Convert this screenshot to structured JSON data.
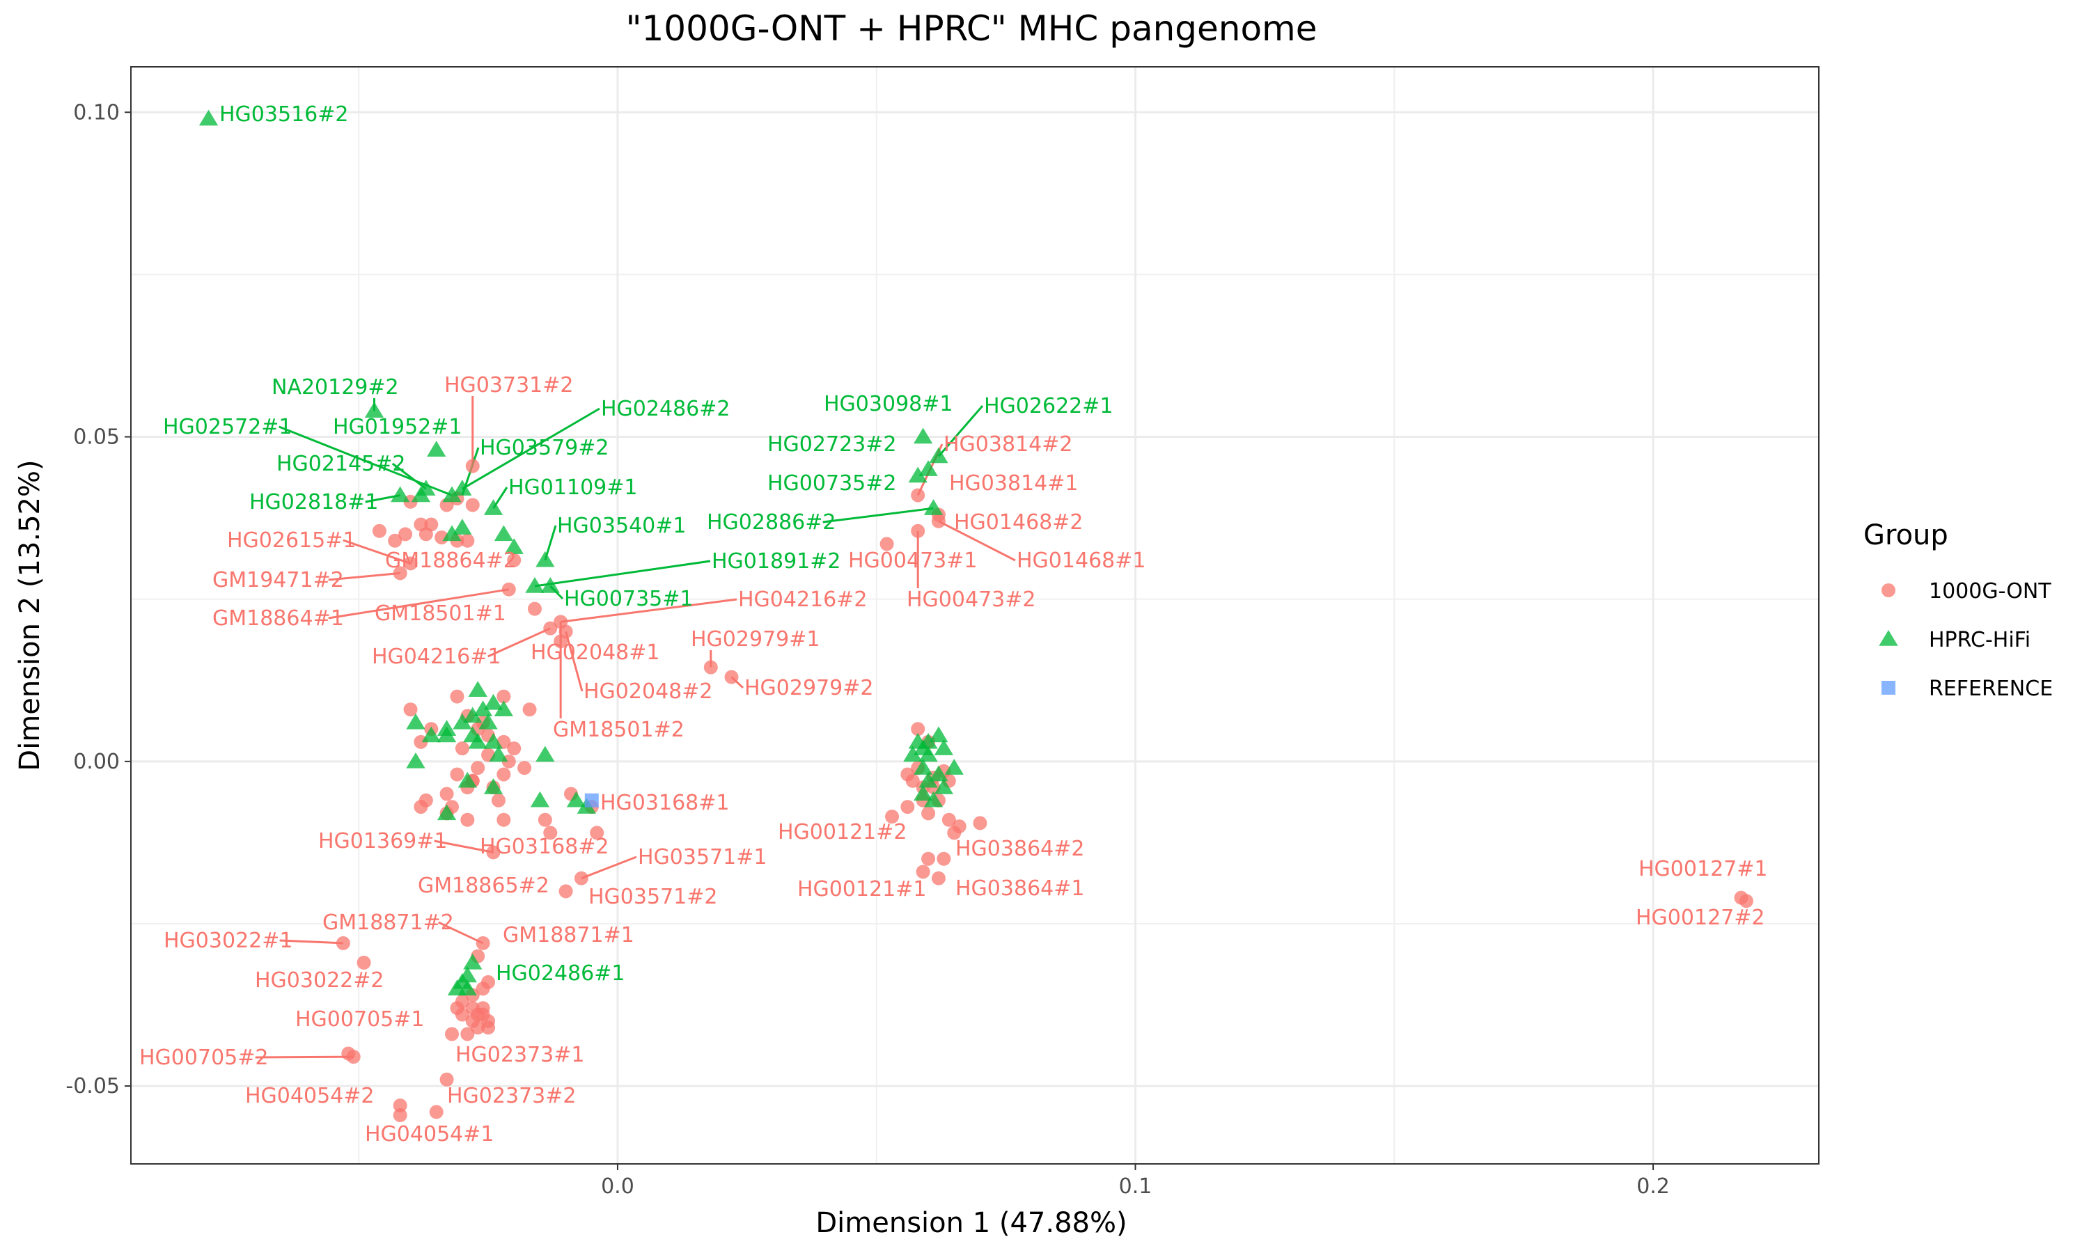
{
  "chart_data": {
    "type": "scatter",
    "title": "\"1000G-ONT + HPRC\" MHC pangenome",
    "xlabel": "Dimension 1 (47.88%)",
    "ylabel": "Dimension 2 (13.52%)",
    "xlim": [
      -0.094,
      0.232
    ],
    "ylim": [
      -0.062,
      0.107
    ],
    "x_ticks": [
      0.0,
      0.1,
      0.2
    ],
    "x_tick_labels": [
      "0.0",
      "0.1",
      "0.2"
    ],
    "y_ticks": [
      -0.05,
      0.0,
      0.05,
      0.1
    ],
    "y_tick_labels": [
      "-0.05",
      "0.00",
      "0.05",
      "0.10"
    ],
    "grid": true,
    "legend": {
      "title": "Group",
      "position": "right",
      "entries": [
        {
          "name": "1000G-ONT",
          "shape": "circle",
          "color": "#F8766D"
        },
        {
          "name": "HPRC-HiFi",
          "shape": "triangle",
          "color": "#00BA38"
        },
        {
          "name": "REFERENCE",
          "shape": "square",
          "color": "#619CFF"
        }
      ]
    },
    "series": [
      {
        "name": "1000G-ONT",
        "color": "#F8766D",
        "shape": "circle",
        "points": [
          [
            -0.028,
            0.0455
          ],
          [
            -0.031,
            0.0405
          ],
          [
            -0.033,
            0.0395
          ],
          [
            -0.028,
            0.0395
          ],
          [
            -0.036,
            0.0365
          ],
          [
            -0.038,
            0.0365
          ],
          [
            -0.037,
            0.035
          ],
          [
            -0.041,
            0.035
          ],
          [
            -0.034,
            0.0345
          ],
          [
            -0.031,
            0.034
          ],
          [
            -0.029,
            0.034
          ],
          [
            -0.04,
            0.04
          ],
          [
            -0.043,
            0.034
          ],
          [
            -0.046,
            0.0355
          ],
          [
            -0.04,
            0.0305
          ],
          [
            -0.042,
            0.029
          ],
          [
            -0.02,
            0.031
          ],
          [
            -0.021,
            0.0265
          ],
          [
            -0.016,
            0.0235
          ],
          [
            -0.013,
            0.0205
          ],
          [
            -0.011,
            0.0215
          ],
          [
            -0.01,
            0.02
          ],
          [
            -0.011,
            0.0185
          ],
          [
            0.018,
            0.0145
          ],
          [
            0.022,
            0.013
          ],
          [
            0.052,
            0.0335
          ],
          [
            0.058,
            0.0355
          ],
          [
            0.058,
            0.041
          ],
          [
            0.062,
            0.038
          ],
          [
            0.062,
            0.037
          ],
          [
            -0.04,
            0.008
          ],
          [
            -0.031,
            0.01
          ],
          [
            -0.036,
            0.005
          ],
          [
            -0.038,
            0.003
          ],
          [
            -0.029,
            0.007
          ],
          [
            -0.027,
            0.005
          ],
          [
            -0.022,
            0.01
          ],
          [
            -0.017,
            0.008
          ],
          [
            -0.025,
            0.004
          ],
          [
            -0.022,
            0.003
          ],
          [
            -0.02,
            0.002
          ],
          [
            -0.03,
            0.002
          ],
          [
            -0.027,
            -0.001
          ],
          [
            -0.022,
            -0.002
          ],
          [
            -0.024,
            -0.004
          ],
          [
            -0.018,
            -0.001
          ],
          [
            -0.028,
            -0.003
          ],
          [
            -0.031,
            -0.002
          ],
          [
            -0.033,
            -0.005
          ],
          [
            -0.037,
            -0.006
          ],
          [
            -0.038,
            -0.007
          ],
          [
            -0.032,
            -0.007
          ],
          [
            -0.029,
            -0.009
          ],
          [
            -0.022,
            -0.009
          ],
          [
            -0.029,
            -0.004
          ],
          [
            -0.025,
            0.001
          ],
          [
            -0.021,
            0.0
          ],
          [
            -0.023,
            -0.006
          ],
          [
            -0.033,
            -0.008
          ],
          [
            -0.014,
            -0.009
          ],
          [
            -0.013,
            -0.011
          ],
          [
            -0.009,
            -0.005
          ],
          [
            -0.005,
            -0.007
          ],
          [
            -0.004,
            -0.011
          ],
          [
            -0.024,
            -0.014
          ],
          [
            -0.028,
            -0.003
          ],
          [
            -0.026,
            0.006
          ],
          [
            -0.007,
            -0.018
          ],
          [
            -0.01,
            -0.02
          ],
          [
            0.058,
            0.005
          ],
          [
            0.06,
            0.003
          ],
          [
            0.056,
            -0.002
          ],
          [
            0.057,
            -0.003
          ],
          [
            0.059,
            -0.004
          ],
          [
            0.061,
            -0.004
          ],
          [
            0.059,
            -0.006
          ],
          [
            0.062,
            -0.006
          ],
          [
            0.064,
            -0.009
          ],
          [
            0.066,
            -0.01
          ],
          [
            0.07,
            -0.0095
          ],
          [
            0.065,
            -0.011
          ],
          [
            0.06,
            -0.008
          ],
          [
            0.056,
            -0.007
          ],
          [
            0.053,
            -0.0085
          ],
          [
            0.061,
            -0.0025
          ],
          [
            0.063,
            -0.0015
          ],
          [
            0.064,
            -0.003
          ],
          [
            0.058,
            -0.001
          ],
          [
            0.06,
            -0.015
          ],
          [
            0.063,
            -0.015
          ],
          [
            0.059,
            -0.017
          ],
          [
            0.062,
            -0.018
          ],
          [
            -0.053,
            -0.028
          ],
          [
            -0.049,
            -0.031
          ],
          [
            -0.026,
            -0.028
          ],
          [
            -0.027,
            -0.03
          ],
          [
            -0.025,
            -0.034
          ],
          [
            -0.026,
            -0.035
          ],
          [
            -0.028,
            -0.036
          ],
          [
            -0.03,
            -0.037
          ],
          [
            -0.031,
            -0.038
          ],
          [
            -0.028,
            -0.038
          ],
          [
            -0.026,
            -0.038
          ],
          [
            -0.027,
            -0.039
          ],
          [
            -0.025,
            -0.04
          ],
          [
            -0.028,
            -0.04
          ],
          [
            -0.03,
            -0.039
          ],
          [
            -0.027,
            -0.041
          ],
          [
            -0.025,
            -0.041
          ],
          [
            -0.029,
            -0.042
          ],
          [
            -0.032,
            -0.042
          ],
          [
            -0.026,
            -0.039
          ],
          [
            -0.052,
            -0.045
          ],
          [
            -0.051,
            -0.0455
          ],
          [
            -0.033,
            -0.049
          ],
          [
            -0.042,
            -0.053
          ],
          [
            -0.042,
            -0.0545
          ],
          [
            -0.035,
            -0.054
          ],
          [
            0.217,
            -0.021
          ],
          [
            0.218,
            -0.0215
          ]
        ]
      },
      {
        "name": "HPRC-HiFi",
        "color": "#00BA38",
        "shape": "triangle",
        "points": [
          [
            -0.079,
            0.099
          ],
          [
            -0.047,
            0.054
          ],
          [
            -0.035,
            0.048
          ],
          [
            -0.037,
            0.042
          ],
          [
            -0.03,
            0.042
          ],
          [
            -0.032,
            0.041
          ],
          [
            -0.038,
            0.041
          ],
          [
            -0.042,
            0.041
          ],
          [
            -0.024,
            0.039
          ],
          [
            -0.03,
            0.036
          ],
          [
            -0.032,
            0.035
          ],
          [
            -0.022,
            0.035
          ],
          [
            -0.02,
            0.033
          ],
          [
            -0.014,
            0.031
          ],
          [
            -0.016,
            0.027
          ],
          [
            -0.013,
            0.027
          ],
          [
            0.059,
            0.05
          ],
          [
            0.062,
            0.047
          ],
          [
            0.058,
            0.044
          ],
          [
            0.06,
            0.045
          ],
          [
            0.061,
            0.039
          ],
          [
            -0.027,
            0.011
          ],
          [
            -0.024,
            0.009
          ],
          [
            -0.022,
            0.008
          ],
          [
            -0.026,
            0.008
          ],
          [
            -0.028,
            0.007
          ],
          [
            -0.025,
            0.006
          ],
          [
            -0.03,
            0.006
          ],
          [
            -0.033,
            0.005
          ],
          [
            -0.039,
            0.006
          ],
          [
            -0.036,
            0.004
          ],
          [
            -0.033,
            0.004
          ],
          [
            -0.028,
            0.004
          ],
          [
            -0.024,
            0.003
          ],
          [
            -0.027,
            0.003
          ],
          [
            -0.023,
            0.001
          ],
          [
            -0.014,
            0.001
          ],
          [
            -0.039,
            -0.0
          ],
          [
            -0.029,
            -0.003
          ],
          [
            -0.024,
            -0.004
          ],
          [
            -0.033,
            -0.008
          ],
          [
            -0.015,
            -0.006
          ],
          [
            -0.008,
            -0.006
          ],
          [
            -0.006,
            -0.007
          ],
          [
            0.058,
            0.003
          ],
          [
            0.06,
            0.003
          ],
          [
            0.062,
            0.004
          ],
          [
            0.059,
            0.002
          ],
          [
            0.063,
            0.002
          ],
          [
            0.06,
            0.001
          ],
          [
            0.057,
            0.001
          ],
          [
            0.059,
            -0.001
          ],
          [
            0.062,
            -0.002
          ],
          [
            0.065,
            -0.001
          ],
          [
            0.06,
            -0.003
          ],
          [
            0.063,
            -0.004
          ],
          [
            0.059,
            -0.005
          ],
          [
            0.061,
            -0.006
          ],
          [
            -0.028,
            -0.031
          ],
          [
            -0.029,
            -0.033
          ],
          [
            -0.03,
            -0.034
          ],
          [
            -0.031,
            -0.035
          ],
          [
            -0.029,
            -0.035
          ]
        ]
      },
      {
        "name": "REFERENCE",
        "color": "#619CFF",
        "shape": "square",
        "points": [
          [
            -0.005,
            -0.006
          ]
        ]
      }
    ],
    "labels": [
      {
        "text": "HG03516#2",
        "group": "HPRC-HiFi",
        "x": -0.079,
        "y": 0.099
      },
      {
        "text": "NA20129#2",
        "group": "HPRC-HiFi",
        "x": -0.047,
        "y": 0.054
      },
      {
        "text": "HG02572#1",
        "group": "HPRC-HiFi",
        "x": -0.032,
        "y": 0.041
      },
      {
        "text": "HG01952#1",
        "group": "HPRC-HiFi",
        "x": -0.035,
        "y": 0.048
      },
      {
        "text": "HG03731#2",
        "group": "1000G-ONT",
        "x": -0.028,
        "y": 0.0455
      },
      {
        "text": "HG02486#2",
        "group": "HPRC-HiFi",
        "x": -0.03,
        "y": 0.042
      },
      {
        "text": "HG03579#2",
        "group": "HPRC-HiFi",
        "x": -0.03,
        "y": 0.041
      },
      {
        "text": "HG02145#2",
        "group": "HPRC-HiFi",
        "x": -0.037,
        "y": 0.042
      },
      {
        "text": "HG01109#1",
        "group": "HPRC-HiFi",
        "x": -0.024,
        "y": 0.039
      },
      {
        "text": "HG02818#1",
        "group": "HPRC-HiFi",
        "x": -0.042,
        "y": 0.041
      },
      {
        "text": "HG03540#1",
        "group": "HPRC-HiFi",
        "x": -0.014,
        "y": 0.031
      },
      {
        "text": "HG02615#1",
        "group": "1000G-ONT",
        "x": -0.04,
        "y": 0.0305
      },
      {
        "text": "GM18864#2",
        "group": "1000G-ONT",
        "x": -0.02,
        "y": 0.031
      },
      {
        "text": "HG01891#2",
        "group": "HPRC-HiFi",
        "x": -0.016,
        "y": 0.027
      },
      {
        "text": "GM19471#2",
        "group": "1000G-ONT",
        "x": -0.042,
        "y": 0.029
      },
      {
        "text": "HG00735#1",
        "group": "HPRC-HiFi",
        "x": -0.013,
        "y": 0.027
      },
      {
        "text": "HG04216#2",
        "group": "1000G-ONT",
        "x": -0.011,
        "y": 0.0215
      },
      {
        "text": "GM18864#1",
        "group": "1000G-ONT",
        "x": -0.021,
        "y": 0.0265
      },
      {
        "text": "GM18501#1",
        "group": "1000G-ONT",
        "x": -0.016,
        "y": 0.0235
      },
      {
        "text": "HG04216#1",
        "group": "1000G-ONT",
        "x": -0.013,
        "y": 0.0205
      },
      {
        "text": "HG02048#1",
        "group": "1000G-ONT",
        "x": -0.011,
        "y": 0.0185
      },
      {
        "text": "HG02048#2",
        "group": "1000G-ONT",
        "x": -0.01,
        "y": 0.02
      },
      {
        "text": "GM18501#2",
        "group": "1000G-ONT",
        "x": -0.011,
        "y": 0.0215
      },
      {
        "text": "HG02979#1",
        "group": "1000G-ONT",
        "x": 0.018,
        "y": 0.0145
      },
      {
        "text": "HG02979#2",
        "group": "1000G-ONT",
        "x": 0.022,
        "y": 0.013
      },
      {
        "text": "HG03098#1",
        "group": "HPRC-HiFi",
        "x": 0.059,
        "y": 0.05
      },
      {
        "text": "HG02622#1",
        "group": "HPRC-HiFi",
        "x": 0.062,
        "y": 0.047
      },
      {
        "text": "HG02723#2",
        "group": "HPRC-HiFi",
        "x": 0.058,
        "y": 0.044
      },
      {
        "text": "HG03814#2",
        "group": "1000G-ONT",
        "x": 0.058,
        "y": 0.041
      },
      {
        "text": "HG00735#2",
        "group": "HPRC-HiFi",
        "x": 0.06,
        "y": 0.045
      },
      {
        "text": "HG03814#1",
        "group": "1000G-ONT",
        "x": 0.058,
        "y": 0.041
      },
      {
        "text": "HG02886#2",
        "group": "HPRC-HiFi",
        "x": 0.061,
        "y": 0.039
      },
      {
        "text": "HG01468#2",
        "group": "1000G-ONT",
        "x": 0.062,
        "y": 0.038
      },
      {
        "text": "HG00473#1",
        "group": "1000G-ONT",
        "x": 0.058,
        "y": 0.0355
      },
      {
        "text": "HG01468#1",
        "group": "1000G-ONT",
        "x": 0.062,
        "y": 0.037
      },
      {
        "text": "HG00473#2",
        "group": "1000G-ONT",
        "x": 0.058,
        "y": 0.0355
      },
      {
        "text": "HG03168#1",
        "group": "1000G-ONT",
        "x": -0.009,
        "y": -0.005
      },
      {
        "text": "HG01369#1",
        "group": "1000G-ONT",
        "x": -0.024,
        "y": -0.014
      },
      {
        "text": "HG03168#2",
        "group": "1000G-ONT",
        "x": -0.024,
        "y": -0.014
      },
      {
        "text": "HG03571#1",
        "group": "1000G-ONT",
        "x": -0.007,
        "y": -0.018
      },
      {
        "text": "GM18865#2",
        "group": "1000G-ONT",
        "x": -0.024,
        "y": -0.014
      },
      {
        "text": "HG03571#2",
        "group": "1000G-ONT",
        "x": -0.01,
        "y": -0.02
      },
      {
        "text": "HG00121#2",
        "group": "1000G-ONT",
        "x": 0.06,
        "y": -0.015
      },
      {
        "text": "HG03864#2",
        "group": "1000G-ONT",
        "x": 0.063,
        "y": -0.015
      },
      {
        "text": "HG00121#1",
        "group": "1000G-ONT",
        "x": 0.059,
        "y": -0.017
      },
      {
        "text": "HG03864#1",
        "group": "1000G-ONT",
        "x": 0.062,
        "y": -0.018
      },
      {
        "text": "HG00127#1",
        "group": "1000G-ONT",
        "x": 0.217,
        "y": -0.021
      },
      {
        "text": "HG00127#2",
        "group": "1000G-ONT",
        "x": 0.218,
        "y": -0.0215
      },
      {
        "text": "GM18871#2",
        "group": "1000G-ONT",
        "x": -0.026,
        "y": -0.028
      },
      {
        "text": "HG03022#1",
        "group": "1000G-ONT",
        "x": -0.053,
        "y": -0.028
      },
      {
        "text": "GM18871#1",
        "group": "1000G-ONT",
        "x": -0.027,
        "y": -0.03
      },
      {
        "text": "HG02486#1",
        "group": "HPRC-HiFi",
        "x": -0.028,
        "y": -0.031
      },
      {
        "text": "HG03022#2",
        "group": "1000G-ONT",
        "x": -0.049,
        "y": -0.031
      },
      {
        "text": "HG00705#1",
        "group": "1000G-ONT",
        "x": -0.031,
        "y": -0.038
      },
      {
        "text": "HG00705#2",
        "group": "1000G-ONT",
        "x": -0.051,
        "y": -0.0455
      },
      {
        "text": "HG02373#1",
        "group": "1000G-ONT",
        "x": -0.033,
        "y": -0.049
      },
      {
        "text": "HG04054#2",
        "group": "1000G-ONT",
        "x": -0.042,
        "y": -0.053
      },
      {
        "text": "HG02373#2",
        "group": "1000G-ONT",
        "x": -0.033,
        "y": -0.049
      },
      {
        "text": "HG04054#1",
        "group": "1000G-ONT",
        "x": -0.042,
        "y": -0.0545
      }
    ]
  }
}
